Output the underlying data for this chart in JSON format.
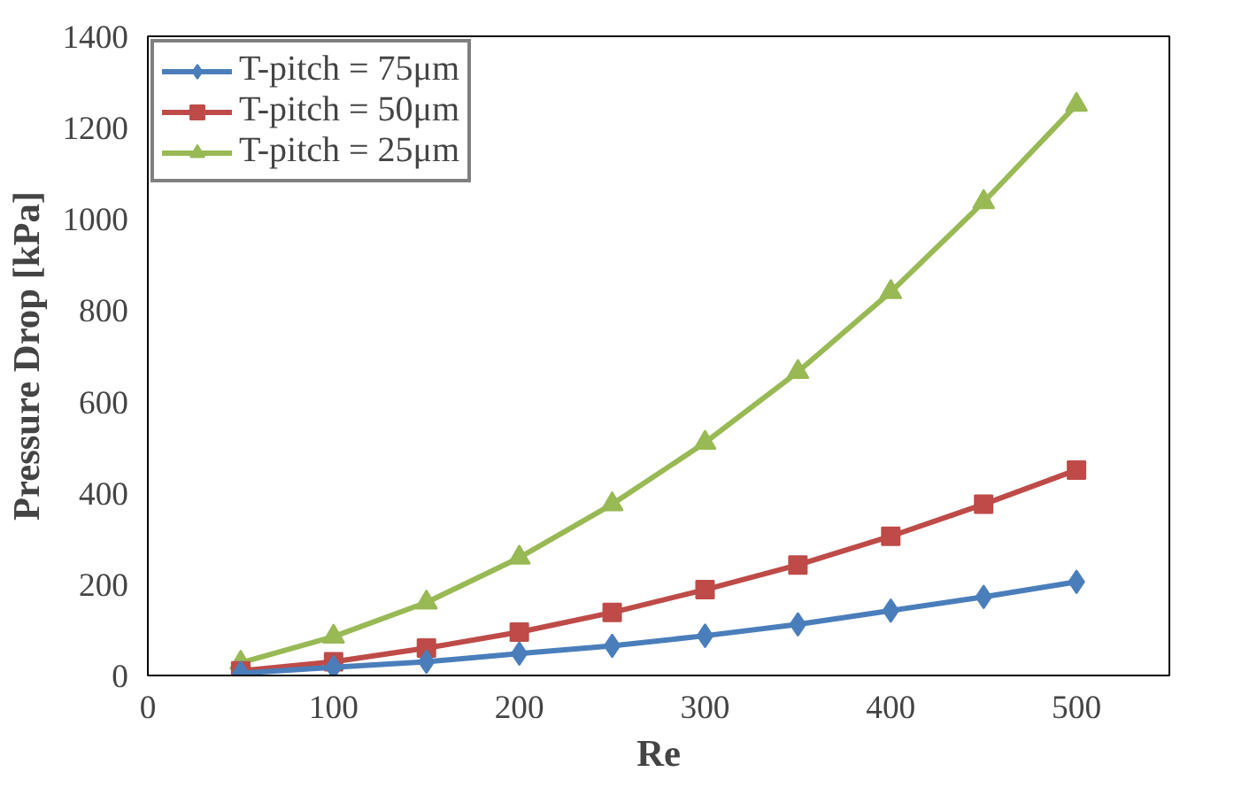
{
  "chart_data": {
    "type": "line",
    "xlabel": "Re",
    "ylabel": "Pressure Drop [kPa]",
    "x": [
      50,
      100,
      150,
      200,
      250,
      300,
      350,
      400,
      450,
      500
    ],
    "series": [
      {
        "name": "T-pitch = 75μm",
        "color": "#4a7ebb",
        "marker": "diamond",
        "values": [
          5,
          18,
          30,
          48,
          65,
          87,
          112,
          142,
          172,
          205
        ]
      },
      {
        "name": "T-pitch = 50μm",
        "color": "#be4b48",
        "marker": "square",
        "values": [
          10,
          30,
          60,
          95,
          138,
          188,
          242,
          305,
          375,
          450
        ]
      },
      {
        "name": "T-pitch = 25μm",
        "color": "#98b954",
        "marker": "triangle",
        "values": [
          28,
          85,
          160,
          258,
          375,
          510,
          665,
          840,
          1037,
          1250
        ]
      }
    ],
    "xlim": [
      0,
      550
    ],
    "xticks": [
      0,
      100,
      200,
      300,
      400,
      500
    ],
    "ylim": [
      0,
      1400
    ],
    "yticks": [
      0,
      200,
      400,
      600,
      800,
      1000,
      1200,
      1400
    ],
    "grid": false,
    "legend": "top left"
  }
}
